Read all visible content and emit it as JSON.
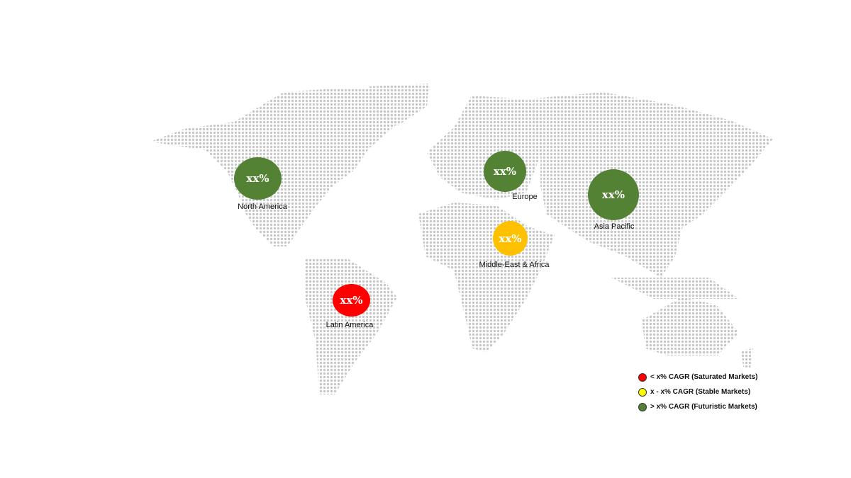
{
  "regions": [
    {
      "name": "North America",
      "value": "xx%",
      "color": "#548235"
    },
    {
      "name": "Europe",
      "value": "xx%",
      "color": "#548235"
    },
    {
      "name": "Asia Pacific",
      "value": "xx%",
      "color": "#548235"
    },
    {
      "name": "Middle-East & Africa",
      "value": "xx%",
      "color": "#ffc000"
    },
    {
      "name": "Latin America",
      "value": "xx%",
      "color": "#ff0000"
    }
  ],
  "legend": [
    {
      "label": "< x% CAGR (Saturated Markets)",
      "color": "#ff0000"
    },
    {
      "label": "x - x% CAGR (Stable Markets)",
      "color": "#ffff00"
    },
    {
      "label": "> x% CAGR (Futuristic Markets)",
      "color": "#548235"
    }
  ],
  "map_dot_color": "#c8c8c8"
}
